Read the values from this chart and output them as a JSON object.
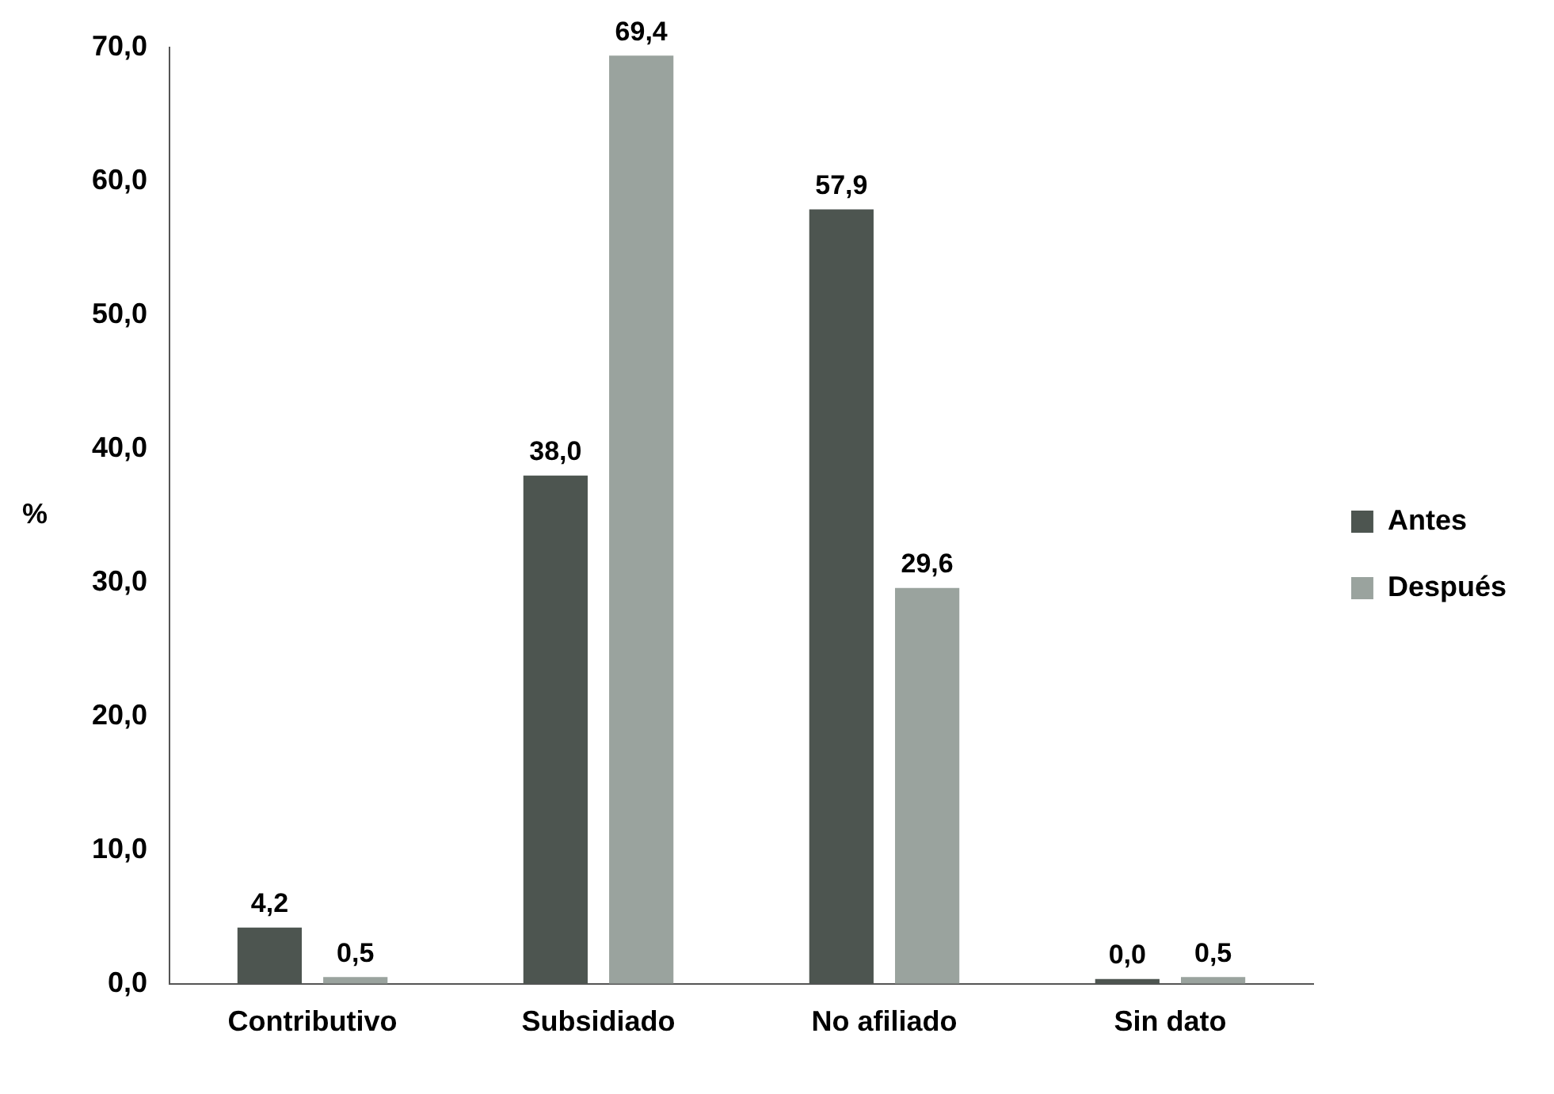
{
  "chart_data": {
    "type": "bar",
    "ylabel": "%",
    "categories": [
      "Contributivo",
      "Subsidiado",
      "No afiliado",
      "Sin dato"
    ],
    "series": [
      {
        "name": "Antes",
        "color": "#4d5550",
        "values": [
          4.2,
          38.0,
          57.9,
          0.0
        ],
        "value_labels": [
          "4,2",
          "38,0",
          "57,9",
          "0,0"
        ]
      },
      {
        "name": "Después",
        "color": "#9aa39e",
        "values": [
          0.5,
          69.4,
          29.6,
          0.5
        ],
        "value_labels": [
          "0,5",
          "69,4",
          "29,6",
          "0,5"
        ]
      }
    ],
    "ylim": [
      0,
      70
    ],
    "yticks": [
      {
        "value": 0,
        "label": "0,0"
      },
      {
        "value": 10,
        "label": "10,0"
      },
      {
        "value": 20,
        "label": "20,0"
      },
      {
        "value": 30,
        "label": "30,0"
      },
      {
        "value": 40,
        "label": "40,0"
      },
      {
        "value": 50,
        "label": "50,0"
      },
      {
        "value": 60,
        "label": "60,0"
      },
      {
        "value": 70,
        "label": "70,0"
      }
    ],
    "grid": false,
    "legend": "right"
  }
}
